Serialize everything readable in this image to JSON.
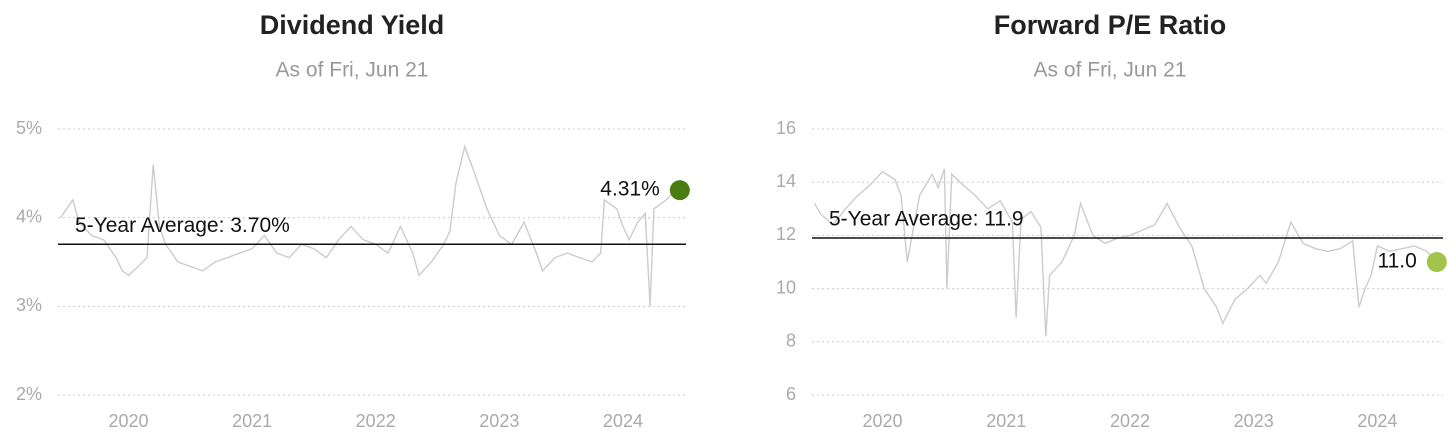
{
  "chart_data": [
    {
      "type": "line",
      "title": "Dividend Yield",
      "subtitle": "As of Fri, Jun 21",
      "xlim": [
        2019.43,
        2024.51
      ],
      "xticks": [
        2020,
        2021,
        2022,
        2023,
        2024
      ],
      "ylim": [
        2,
        5
      ],
      "yticks": [
        {
          "value": 2,
          "label": "2%"
        },
        {
          "value": 3,
          "label": "3%"
        },
        {
          "value": 4,
          "label": "4%"
        },
        {
          "value": 5,
          "label": "5%"
        }
      ],
      "grid": true,
      "average": {
        "value": 3.7,
        "label": "5-Year Average: 3.70%"
      },
      "current": {
        "value": 4.31,
        "label": "4.31%",
        "color": "#4a7c0f"
      },
      "series": [
        {
          "color": "#cccccc",
          "x": [
            2019.45,
            2019.5,
            2019.55,
            2019.6,
            2019.7,
            2019.8,
            2019.9,
            2019.95,
            2020.0,
            2020.08,
            2020.15,
            2020.2,
            2020.25,
            2020.3,
            2020.4,
            2020.5,
            2020.6,
            2020.7,
            2020.8,
            2020.9,
            2021.0,
            2021.1,
            2021.2,
            2021.3,
            2021.4,
            2021.5,
            2021.6,
            2021.7,
            2021.8,
            2021.9,
            2022.0,
            2022.1,
            2022.2,
            2022.3,
            2022.35,
            2022.45,
            2022.55,
            2022.6,
            2022.65,
            2022.72,
            2022.8,
            2022.9,
            2023.0,
            2023.1,
            2023.2,
            2023.3,
            2023.35,
            2023.45,
            2023.55,
            2023.65,
            2023.75,
            2023.82,
            2023.85,
            2023.95,
            2024.0,
            2024.05,
            2024.12,
            2024.18,
            2024.22,
            2024.25,
            2024.35,
            2024.42,
            2024.46
          ],
          "values": [
            4.0,
            4.1,
            4.2,
            3.95,
            3.8,
            3.75,
            3.55,
            3.4,
            3.35,
            3.45,
            3.55,
            4.6,
            3.9,
            3.7,
            3.5,
            3.45,
            3.4,
            3.5,
            3.55,
            3.6,
            3.65,
            3.8,
            3.6,
            3.55,
            3.7,
            3.65,
            3.55,
            3.75,
            3.9,
            3.75,
            3.7,
            3.6,
            3.9,
            3.6,
            3.35,
            3.5,
            3.7,
            3.85,
            4.4,
            4.8,
            4.5,
            4.1,
            3.8,
            3.7,
            3.95,
            3.6,
            3.4,
            3.55,
            3.6,
            3.55,
            3.5,
            3.6,
            4.2,
            4.1,
            3.9,
            3.75,
            3.95,
            4.05,
            3.0,
            4.1,
            4.2,
            4.3,
            4.31
          ]
        }
      ]
    },
    {
      "type": "line",
      "title": "Forward P/E Ratio",
      "subtitle": "As of Fri, Jun 21",
      "xlim": [
        2019.43,
        2024.53
      ],
      "xticks": [
        2020,
        2021,
        2022,
        2023,
        2024
      ],
      "ylim": [
        6,
        16
      ],
      "yticks": [
        6,
        8,
        10,
        12,
        14,
        16
      ],
      "grid": true,
      "average": {
        "value": 11.9,
        "label": "5-Year Average: 11.9"
      },
      "current": {
        "value": 11,
        "label": "11.0",
        "color": "#a3c44a"
      },
      "series": [
        {
          "color": "#cccccc",
          "x": [
            2019.45,
            2019.5,
            2019.6,
            2019.7,
            2019.8,
            2019.9,
            2020.0,
            2020.1,
            2020.15,
            2020.2,
            2020.25,
            2020.3,
            2020.4,
            2020.45,
            2020.5,
            2020.52,
            2020.56,
            2020.65,
            2020.75,
            2020.85,
            2020.95,
            2021.05,
            2021.08,
            2021.12,
            2021.2,
            2021.28,
            2021.32,
            2021.35,
            2021.45,
            2021.55,
            2021.6,
            2021.7,
            2021.8,
            2021.9,
            2022.0,
            2022.1,
            2022.2,
            2022.3,
            2022.4,
            2022.5,
            2022.6,
            2022.7,
            2022.75,
            2022.85,
            2022.95,
            2023.05,
            2023.1,
            2023.2,
            2023.3,
            2023.4,
            2023.5,
            2023.6,
            2023.7,
            2023.8,
            2023.85,
            2023.9,
            2023.95,
            2024.0,
            2024.1,
            2024.2,
            2024.3,
            2024.4,
            2024.48
          ],
          "values": [
            13.2,
            12.8,
            12.4,
            13.0,
            13.5,
            13.9,
            14.4,
            14.1,
            13.5,
            11.0,
            12.3,
            13.5,
            14.3,
            13.8,
            14.5,
            10.0,
            14.3,
            13.9,
            13.5,
            13.0,
            13.3,
            12.5,
            8.9,
            12.6,
            12.9,
            12.3,
            8.2,
            10.5,
            11.0,
            12.0,
            13.2,
            12.0,
            11.7,
            11.9,
            12.0,
            12.2,
            12.4,
            13.2,
            12.3,
            11.6,
            10.0,
            9.3,
            8.7,
            9.6,
            10.0,
            10.5,
            10.2,
            11.0,
            12.5,
            11.7,
            11.5,
            11.4,
            11.5,
            11.8,
            9.3,
            10.0,
            10.5,
            11.6,
            11.4,
            11.5,
            11.6,
            11.4,
            11.0
          ]
        }
      ]
    }
  ]
}
